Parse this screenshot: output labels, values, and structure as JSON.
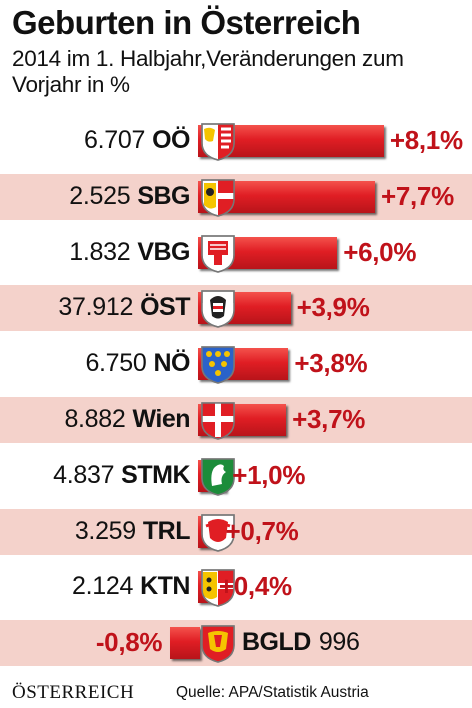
{
  "header": {
    "title": "Geburten in Österreich",
    "subtitle": "2014 im 1. Halbjahr,Veränderungen zum Vorjahr in %"
  },
  "chart_data": {
    "type": "bar",
    "title": "Geburten in Österreich",
    "subtitle": "2014 im 1. Halbjahr,Veränderungen zum Vorjahr in %",
    "categories": [
      "OÖ",
      "SBG",
      "VBG",
      "ÖST",
      "NÖ",
      "Wien",
      "STMK",
      "TRL",
      "KTN",
      "BGLD"
    ],
    "births": [
      "6.707",
      "2.525",
      "1.832",
      "37.912",
      "6.750",
      "8.882",
      "4.837",
      "3.259",
      "2.124",
      "996"
    ],
    "values": [
      8.1,
      7.7,
      6.0,
      3.9,
      3.8,
      3.7,
      1.0,
      0.7,
      0.4,
      -0.8
    ],
    "labels": [
      "+8,1%",
      "+7,7%",
      "+6,0%",
      "+3,9%",
      "+3,8%",
      "+3,7%",
      "+1,0%",
      "+0,7%",
      "+0,4%",
      "-0,8%"
    ],
    "highlight": [
      "ÖST"
    ],
    "xlabel": "",
    "ylabel": "",
    "bar_color": "#e01e24",
    "label_color": "#c0121a",
    "shade_color": "#f4d2cb"
  },
  "crest_icons": [
    "oberoesterreich-crest-icon",
    "salzburg-crest-icon",
    "vorarlberg-crest-icon",
    "austria-crest-icon",
    "niederoesterreich-crest-icon",
    "wien-crest-icon",
    "steiermark-crest-icon",
    "tirol-crest-icon",
    "kaernten-crest-icon",
    "burgenland-crest-icon"
  ],
  "footer": {
    "brand": "ÖSTERREICH",
    "source": "Quelle: APA/Statistik Austria"
  }
}
